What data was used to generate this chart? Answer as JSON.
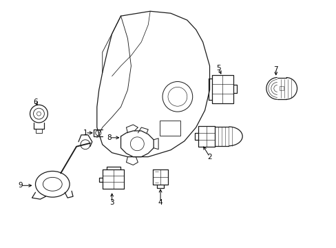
{
  "background_color": "#ffffff",
  "line_color": "#1a1a1a",
  "fig_width": 4.89,
  "fig_height": 3.6,
  "dpi": 100,
  "labels": {
    "1": [
      135,
      197,
      155,
      197
    ],
    "2": [
      303,
      218,
      303,
      205
    ],
    "3": [
      167,
      292,
      167,
      278
    ],
    "4": [
      234,
      287,
      234,
      270
    ],
    "5": [
      310,
      105,
      318,
      118
    ],
    "6": [
      55,
      152,
      60,
      162
    ],
    "7": [
      393,
      105,
      393,
      118
    ],
    "8": [
      160,
      200,
      177,
      200
    ],
    "9": [
      35,
      270,
      48,
      270
    ]
  }
}
